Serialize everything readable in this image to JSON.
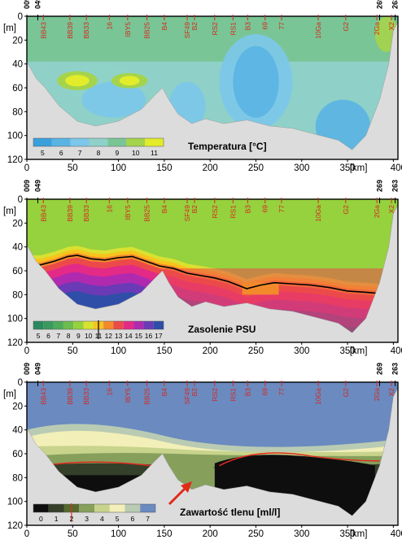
{
  "figure": {
    "stations": [
      "009",
      "049",
      "BB43",
      "BB39",
      "BB33",
      "16",
      "IBY5",
      "BB25",
      "B4",
      "SF49",
      "B2",
      "RS2",
      "RS1",
      "B3",
      "69",
      "77",
      "10Ga",
      "G2",
      "2Ga",
      "269",
      "X2",
      "263"
    ],
    "colors": {
      "station_red": "#d42a1f",
      "frame": "#000000",
      "seabed": "#dcdcdc",
      "arrow": "#e02a1a"
    }
  },
  "chart_data": [
    {
      "type": "heatmap",
      "title": "Temperatura [°C]",
      "ylabel": "[m]",
      "xunit": "[km]",
      "xlim": [
        0,
        405
      ],
      "ylim": [
        120,
        0
      ],
      "xticks": [
        0,
        50,
        100,
        150,
        200,
        250,
        300,
        350,
        400
      ],
      "yticks": [
        0,
        20,
        40,
        60,
        80,
        100,
        120
      ],
      "colorbar": {
        "labels": [
          "5",
          "6",
          "7",
          "8",
          "9",
          "10",
          "11"
        ],
        "colors": [
          "#3aa0db",
          "#5ab4e3",
          "#7cc7ea",
          "#8fd1c8",
          "#79c596",
          "#a5d34c",
          "#e2ec2a"
        ]
      },
      "station_km": [
        0,
        12,
        18,
        47,
        65,
        90,
        110,
        131,
        150,
        175,
        183,
        205,
        225,
        241,
        260,
        278,
        318,
        348,
        382,
        385,
        398,
        402
      ],
      "seabed_profile": [
        [
          0,
          38
        ],
        [
          10,
          52
        ],
        [
          20,
          60
        ],
        [
          35,
          75
        ],
        [
          55,
          88
        ],
        [
          75,
          92
        ],
        [
          100,
          88
        ],
        [
          125,
          78
        ],
        [
          140,
          66
        ],
        [
          148,
          60
        ],
        [
          155,
          70
        ],
        [
          165,
          82
        ],
        [
          180,
          90
        ],
        [
          195,
          86
        ],
        [
          215,
          90
        ],
        [
          240,
          87
        ],
        [
          265,
          92
        ],
        [
          290,
          94
        ],
        [
          320,
          100
        ],
        [
          340,
          104
        ],
        [
          355,
          112
        ],
        [
          370,
          100
        ],
        [
          385,
          70
        ],
        [
          395,
          40
        ],
        [
          400,
          12
        ],
        [
          405,
          5
        ]
      ],
      "dominant_band": "8",
      "features": [
        {
          "label": "warm pocket",
          "value": "11",
          "km": [
            50,
            72
          ],
          "depth": [
            48,
            60
          ]
        },
        {
          "label": "cold core",
          "value": "6",
          "km": [
            205,
            290
          ],
          "depth": [
            20,
            80
          ]
        },
        {
          "label": "cold deep",
          "value": "6",
          "km": [
            320,
            370
          ],
          "depth": [
            70,
            110
          ]
        }
      ],
      "stations_shown": true
    },
    {
      "type": "heatmap",
      "title": "Zasolenie PSU",
      "ylabel": "[m]",
      "xunit": "[km]",
      "xlim": [
        0,
        405
      ],
      "ylim": [
        120,
        0
      ],
      "xticks": [
        0,
        50,
        100,
        150,
        200,
        250,
        300,
        350,
        400
      ],
      "yticks": [
        0,
        20,
        40,
        60,
        80,
        100,
        120
      ],
      "colorbar": {
        "labels": [
          "5",
          "6",
          "7",
          "8",
          "9",
          "10",
          "11",
          "12",
          "13",
          "14",
          "15",
          "16",
          "17"
        ],
        "colors": [
          "#2a8a5e",
          "#3a9a5e",
          "#4faa5a",
          "#6dbd4e",
          "#96d13e",
          "#d9e131",
          "#f7c41e",
          "#f28a2c",
          "#ec4a4a",
          "#e32a86",
          "#b02ab0",
          "#6b3ab6",
          "#2f4ea8"
        ],
        "marked_value": "11"
      },
      "halocline_km": [
        0,
        15,
        30,
        45,
        55,
        70,
        85,
        100,
        115,
        130,
        145,
        160,
        175,
        190,
        205,
        220,
        240,
        255,
        270,
        290,
        310,
        330,
        350,
        370,
        385
      ],
      "halocline_depth": [
        55,
        55,
        52,
        48,
        47,
        50,
        51,
        49,
        48,
        52,
        56,
        58,
        62,
        64,
        66,
        69,
        75,
        72,
        70,
        71,
        72,
        74,
        77,
        78,
        79
      ],
      "seabed_profile": [
        [
          0,
          38
        ],
        [
          10,
          52
        ],
        [
          20,
          60
        ],
        [
          35,
          75
        ],
        [
          55,
          88
        ],
        [
          75,
          92
        ],
        [
          100,
          88
        ],
        [
          125,
          78
        ],
        [
          140,
          66
        ],
        [
          148,
          60
        ],
        [
          155,
          70
        ],
        [
          165,
          82
        ],
        [
          180,
          90
        ],
        [
          195,
          86
        ],
        [
          215,
          90
        ],
        [
          240,
          87
        ],
        [
          265,
          92
        ],
        [
          290,
          94
        ],
        [
          320,
          100
        ],
        [
          340,
          104
        ],
        [
          355,
          112
        ],
        [
          370,
          100
        ],
        [
          385,
          70
        ],
        [
          395,
          40
        ],
        [
          400,
          12
        ],
        [
          405,
          5
        ]
      ],
      "stations_shown": true
    },
    {
      "type": "heatmap",
      "title": "Zawartość tlenu [ml/l]",
      "ylabel": "[m]",
      "xunit": "[km]",
      "xlim": [
        0,
        405
      ],
      "ylim": [
        120,
        0
      ],
      "xticks": [
        0,
        50,
        100,
        150,
        200,
        250,
        300,
        350,
        400
      ],
      "yticks": [
        0,
        20,
        40,
        60,
        80,
        100,
        120
      ],
      "colorbar": {
        "labels": [
          "0",
          "1",
          "2",
          "3",
          "4",
          "5",
          "6",
          "7"
        ],
        "colors": [
          "#0e0e0e",
          "#34402a",
          "#556a2c",
          "#86a05c",
          "#c8d38c",
          "#f2efb8",
          "#b9cbb3",
          "#6a8ac0"
        ],
        "marked_value": "2"
      },
      "isoline_value": "2",
      "seabed_profile": [
        [
          0,
          38
        ],
        [
          10,
          52
        ],
        [
          20,
          60
        ],
        [
          35,
          75
        ],
        [
          55,
          88
        ],
        [
          75,
          92
        ],
        [
          100,
          88
        ],
        [
          125,
          78
        ],
        [
          140,
          66
        ],
        [
          148,
          60
        ],
        [
          155,
          70
        ],
        [
          165,
          82
        ],
        [
          180,
          90
        ],
        [
          195,
          86
        ],
        [
          215,
          90
        ],
        [
          240,
          87
        ],
        [
          265,
          92
        ],
        [
          290,
          94
        ],
        [
          320,
          100
        ],
        [
          340,
          104
        ],
        [
          355,
          112
        ],
        [
          370,
          100
        ],
        [
          385,
          70
        ],
        [
          395,
          40
        ],
        [
          400,
          12
        ],
        [
          405,
          5
        ]
      ],
      "annotation": "arrow",
      "stations_shown": true
    }
  ]
}
